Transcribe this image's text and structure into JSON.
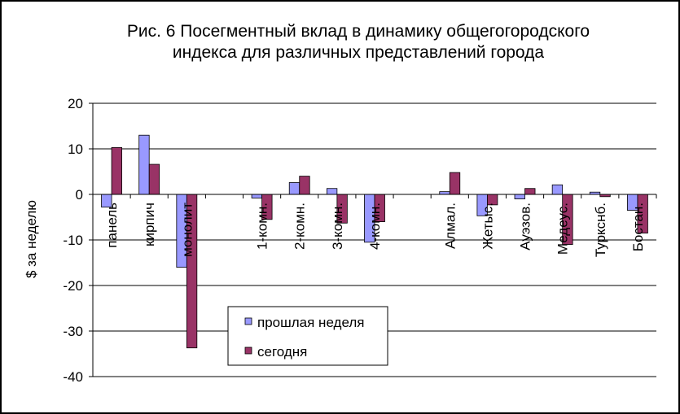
{
  "chart_data": {
    "type": "bar",
    "title_lines": [
      "Рис. 6 Посегментный вклад в динамику общегогородского",
      "индекса для различных представлений города"
    ],
    "ylabel": "$ за неделю",
    "ylim": [
      -40,
      20
    ],
    "yticks": [
      20,
      10,
      0,
      -10,
      -20,
      -30,
      -40
    ],
    "grid": true,
    "legend_position": "bottom-center",
    "categories": [
      "панель",
      "кирпич",
      "монолит",
      "",
      "1-комн.",
      "2-комн.",
      "3-комн.",
      "4-комн.",
      "",
      "Алмал.",
      "Жетыс.",
      "Ауэзов.",
      "Медеус.",
      "Туркснб.",
      "Бостан."
    ],
    "series": [
      {
        "name": "прошлая неделя",
        "color": "#9999ff",
        "values": [
          -2.8,
          13.0,
          -16.0,
          null,
          -0.8,
          2.6,
          1.3,
          -10.5,
          null,
          0.6,
          -4.7,
          -1.0,
          2.1,
          0.5,
          -3.5
        ]
      },
      {
        "name": "сегодня",
        "color": "#993366",
        "values": [
          10.3,
          6.6,
          -33.7,
          null,
          -5.5,
          4.0,
          -6.3,
          -6.0,
          null,
          4.8,
          -2.3,
          1.3,
          -11.0,
          -0.5,
          -8.5
        ]
      }
    ]
  }
}
